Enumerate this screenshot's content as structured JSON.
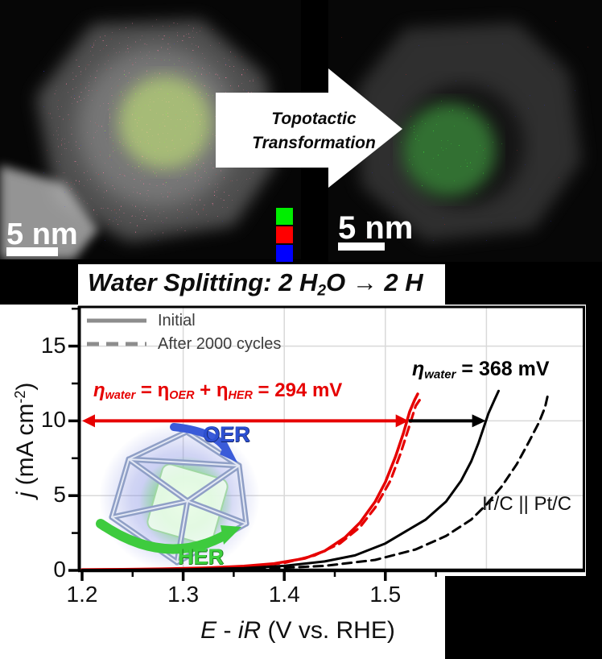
{
  "tem_left": {
    "scale_bar": "5 nm"
  },
  "tem_right": {
    "scale_bar": "5 nm"
  },
  "transformation_arrow": {
    "line1": "Topotactic",
    "line2": "Transformation"
  },
  "eds_legend": {
    "names": [
      "green",
      "red",
      "blue"
    ],
    "colors": [
      "#00ee00",
      "#ff0000",
      "#0000ff"
    ]
  },
  "title": {
    "part1": "Water Splitting: 2 H",
    "sub": "2",
    "part2": "O → 2 H"
  },
  "legend": {
    "initial": "Initial",
    "after": "After 2000 cycles"
  },
  "annotations": {
    "water_black": {
      "p1": "η",
      "s1": "water",
      "p2": " = 368 mV"
    },
    "water_red": {
      "p1": "η",
      "s1": "water",
      "p2": " = η",
      "s2": "OER",
      "p3": " + η",
      "s3": "HER",
      "p4": " = 294 mV"
    },
    "catalyst": "Ir/C || Pt/C",
    "oer": "OER",
    "her": "HER"
  },
  "axis": {
    "ylabel": {
      "j": "j",
      "mid": " (mA cm",
      "sup": "-2",
      "close": ")"
    },
    "xlabel": {
      "e": "E",
      "mid": " - ",
      "ir": "iR",
      "rest": " (V vs. RHE)"
    }
  },
  "chart_data": {
    "type": "line",
    "xlabel": "E - iR (V vs. RHE)",
    "ylabel": "j (mA cm-2)",
    "xlim": [
      1.2,
      1.7
    ],
    "ylim": [
      0,
      17.7
    ],
    "x_ticks": [
      1.2,
      1.3,
      1.4,
      1.5
    ],
    "x_tick_labels": [
      "1.2",
      "1.3",
      "1.4",
      "1.5"
    ],
    "x_minor_ticks": [
      1.25,
      1.35,
      1.45,
      1.55
    ],
    "y_ticks": [
      0,
      5,
      10,
      15
    ],
    "y_tick_labels": [
      "0",
      "5",
      "10",
      "15"
    ],
    "y_minor_ticks": [
      2.5,
      7.5,
      12.5,
      17.5
    ],
    "grid": true,
    "grid_v_lines": [
      1.3,
      1.4,
      1.5,
      1.6
    ],
    "grid_h_lines": [
      5,
      10,
      15
    ],
    "legend_entries": [
      "Initial",
      "After 2000 cycles"
    ],
    "legend_position": "top-left",
    "series": [
      {
        "name": "overall-water-splitting-initial",
        "color": "#e60000",
        "style": "solid",
        "width": 3.5,
        "points": [
          [
            1.2,
            0.05
          ],
          [
            1.24,
            0.07
          ],
          [
            1.28,
            0.1
          ],
          [
            1.32,
            0.16
          ],
          [
            1.36,
            0.28
          ],
          [
            1.39,
            0.45
          ],
          [
            1.42,
            0.8
          ],
          [
            1.44,
            1.3
          ],
          [
            1.46,
            2.2
          ],
          [
            1.475,
            3.2
          ],
          [
            1.49,
            4.6
          ],
          [
            1.5,
            5.9
          ],
          [
            1.51,
            7.6
          ],
          [
            1.518,
            9.2
          ],
          [
            1.524,
            10.6
          ],
          [
            1.529,
            11.4
          ],
          [
            1.532,
            11.8
          ]
        ]
      },
      {
        "name": "overall-water-splitting-after-2000-cycles",
        "color": "#e60000",
        "style": "dashed",
        "width": 3.2,
        "points": [
          [
            1.2,
            0.03
          ],
          [
            1.26,
            0.06
          ],
          [
            1.31,
            0.1
          ],
          [
            1.36,
            0.22
          ],
          [
            1.4,
            0.5
          ],
          [
            1.43,
            1.0
          ],
          [
            1.455,
            1.8
          ],
          [
            1.475,
            2.9
          ],
          [
            1.49,
            4.2
          ],
          [
            1.505,
            6.0
          ],
          [
            1.515,
            7.8
          ],
          [
            1.523,
            9.5
          ],
          [
            1.53,
            11.0
          ],
          [
            1.536,
            11.6
          ]
        ]
      },
      {
        "name": "Ir/C || Pt/C initial",
        "color": "#000000",
        "style": "solid",
        "width": 3,
        "points": [
          [
            1.2,
            0.02
          ],
          [
            1.3,
            0.06
          ],
          [
            1.36,
            0.15
          ],
          [
            1.4,
            0.3
          ],
          [
            1.44,
            0.6
          ],
          [
            1.47,
            1.0
          ],
          [
            1.5,
            1.8
          ],
          [
            1.52,
            2.6
          ],
          [
            1.54,
            3.4
          ],
          [
            1.56,
            4.6
          ],
          [
            1.575,
            6.0
          ],
          [
            1.585,
            7.3
          ],
          [
            1.592,
            8.5
          ],
          [
            1.598,
            9.7
          ],
          [
            1.602,
            10.5
          ],
          [
            1.608,
            11.4
          ],
          [
            1.612,
            12.0
          ]
        ]
      },
      {
        "name": "Ir/C || Pt/C after 2000 cycles",
        "color": "#000000",
        "style": "dashed",
        "width": 3,
        "points": [
          [
            1.2,
            0.01
          ],
          [
            1.3,
            0.04
          ],
          [
            1.38,
            0.12
          ],
          [
            1.44,
            0.3
          ],
          [
            1.49,
            0.7
          ],
          [
            1.53,
            1.4
          ],
          [
            1.56,
            2.3
          ],
          [
            1.585,
            3.4
          ],
          [
            1.6,
            4.4
          ],
          [
            1.615,
            5.6
          ],
          [
            1.63,
            7.1
          ],
          [
            1.642,
            8.6
          ],
          [
            1.652,
            9.9
          ],
          [
            1.658,
            10.9
          ],
          [
            1.661,
            11.8
          ]
        ]
      }
    ],
    "overpotential_markers": [
      {
        "label": "η_water = η_OER + η_HER = 294 mV",
        "j": 10,
        "v_from": 1.2,
        "v_to": 1.523,
        "style": "double_arrow",
        "color": "#e60000"
      },
      {
        "label": "η_water = 368 mV",
        "j": 10,
        "v_from": 1.523,
        "v_to": 1.597,
        "style": "arrow",
        "color": "#000000"
      }
    ]
  }
}
